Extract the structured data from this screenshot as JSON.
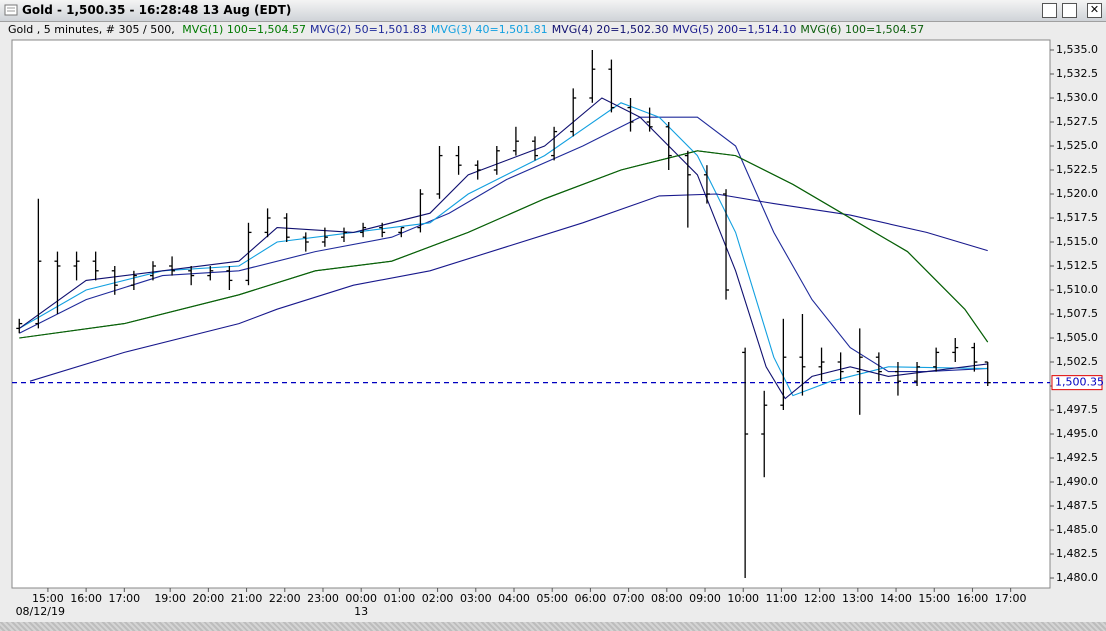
{
  "window": {
    "title": "Gold - 1,500.35 - 16:28:48  13 Aug (EDT)"
  },
  "chart_data": {
    "type": "ohlc",
    "info": "Gold , 5 minutes, # 305 / 500,",
    "color": "#000000",
    "x": [
      -0.75,
      -0.25,
      0.25,
      0.75,
      1.25,
      1.75,
      2.25,
      2.75,
      3.25,
      3.75,
      4.25,
      4.75,
      5.25,
      5.75,
      6.25,
      6.75,
      7.25,
      7.75,
      8.25,
      8.75,
      9.25,
      9.75,
      10.25,
      10.75,
      11.25,
      11.75,
      12.25,
      12.75,
      13.25,
      13.75,
      14.25,
      14.75,
      15.25,
      15.75,
      16.25,
      16.75,
      17.25,
      17.75,
      18.25,
      18.75,
      19.25,
      19.75,
      20.25,
      20.75,
      21.25,
      21.75,
      22.25,
      22.75,
      23.25,
      23.75,
      24.25,
      24.6
    ],
    "open": [
      1506,
      1506.5,
      1513,
      1512.5,
      1513,
      1512,
      1510.5,
      1511.5,
      1512.5,
      1512,
      1511.5,
      1512,
      1511,
      1516,
      1517.5,
      1515.5,
      1515,
      1515.5,
      1516,
      1516.5,
      1516,
      1516.5,
      1520,
      1524,
      1523,
      1522.5,
      1524.5,
      1525.5,
      1524,
      1526.5,
      1530,
      1533,
      1529,
      1527.5,
      1527,
      1524,
      1522,
      1520,
      1503.5,
      1495,
      1498,
      1503,
      1502,
      1502.5,
      1501.5,
      1503,
      1501.5,
      1500.5,
      1502,
      1503.5,
      1504,
      1502.5
    ],
    "high": [
      1507,
      1519.5,
      1514,
      1514,
      1514,
      1512.5,
      1512,
      1513,
      1513.5,
      1512.5,
      1512.5,
      1512.5,
      1517,
      1518.5,
      1518,
      1516,
      1516.5,
      1516.5,
      1517,
      1517,
      1516.5,
      1520.5,
      1525,
      1525,
      1523.5,
      1525,
      1527,
      1526,
      1527,
      1531,
      1535,
      1534,
      1530,
      1529,
      1527.5,
      1524.5,
      1523,
      1520.5,
      1504,
      1499.5,
      1507,
      1507.5,
      1504,
      1503.5,
      1506,
      1503.5,
      1502.5,
      1502.5,
      1504,
      1505,
      1504.5,
      1502.5
    ],
    "low": [
      1505.5,
      1506,
      1507.5,
      1511,
      1511,
      1509.5,
      1510,
      1511,
      1511.5,
      1510.5,
      1511,
      1510,
      1510.5,
      1515.5,
      1515,
      1514,
      1514.5,
      1515,
      1515.5,
      1515.5,
      1515.5,
      1516,
      1519.5,
      1522,
      1521.5,
      1522,
      1524,
      1523.5,
      1523.5,
      1526,
      1529.5,
      1528.5,
      1526.5,
      1526.5,
      1522.5,
      1516.5,
      1519,
      1509,
      1480,
      1490.5,
      1497.5,
      1499,
      1500.5,
      1500.5,
      1497,
      1500.5,
      1499,
      1500,
      1501.5,
      1502.5,
      1501.5,
      1500
    ],
    "close": [
      1506.5,
      1513,
      1512.5,
      1513,
      1512,
      1510.5,
      1511.5,
      1512.5,
      1512,
      1511.5,
      1512,
      1511,
      1516,
      1517.5,
      1515.5,
      1515,
      1515.5,
      1516,
      1516.5,
      1516,
      1516.5,
      1520,
      1524,
      1523,
      1522.5,
      1524.5,
      1525.5,
      1524,
      1526.5,
      1530,
      1533,
      1529,
      1527.5,
      1527,
      1524,
      1522,
      1520,
      1510,
      1495,
      1498,
      1503,
      1502,
      1502.5,
      1501.5,
      1503,
      1501.5,
      1500.5,
      1502,
      1503.5,
      1504,
      1502.5,
      1500.35
    ],
    "series": [
      {
        "name": "MVG(1) 100=1,504.57",
        "color": "#007a00",
        "x": [
          -0.75,
          2,
          5,
          7,
          9,
          11,
          13,
          15,
          17,
          18,
          19.5,
          21,
          22.5,
          24,
          24.6
        ],
        "values": [
          1505,
          1506.5,
          1509.5,
          1512,
          1513,
          1516,
          1519.5,
          1522.5,
          1524.5,
          1524,
          1521,
          1517.5,
          1514,
          1508,
          1504.57
        ]
      },
      {
        "name": "MVG(2) 50=1,501.83",
        "color": "#1f2a9a",
        "x": [
          -0.75,
          1,
          3,
          5,
          7,
          9,
          10.5,
          12,
          14,
          15.5,
          17,
          18,
          19,
          20,
          21,
          22,
          23,
          24.6
        ],
        "values": [
          1505.5,
          1509,
          1511.5,
          1512,
          1514,
          1515.5,
          1518,
          1521.5,
          1525,
          1528,
          1528,
          1525,
          1516,
          1509,
          1504,
          1501.5,
          1501.5,
          1501.83
        ]
      },
      {
        "name": "MVG(3) 40=1,501.81",
        "color": "#12a0e0",
        "x": [
          -0.75,
          1,
          3,
          5,
          6,
          8,
          10,
          11,
          13,
          15,
          16,
          17,
          18,
          19,
          19.5,
          20.5,
          22,
          24.6
        ],
        "values": [
          1506,
          1510,
          1512,
          1512.5,
          1515,
          1516,
          1517,
          1520,
          1524,
          1529.5,
          1528,
          1524,
          1516,
          1503,
          1499,
          1500.5,
          1502,
          1501.81
        ]
      },
      {
        "name": "MVG(4) 20=1,502.30",
        "color": "#101070",
        "x": [
          -0.75,
          1,
          3,
          5,
          6,
          8,
          10,
          11,
          13,
          14.5,
          15.5,
          17,
          18,
          18.8,
          19.3,
          20,
          21,
          22,
          24.6
        ],
        "values": [
          1506,
          1511,
          1512,
          1513,
          1516.5,
          1516,
          1518,
          1522,
          1525,
          1530,
          1528,
          1522,
          1512,
          1502,
          1498.7,
          1501,
          1502,
          1501,
          1502.3
        ]
      },
      {
        "name": "MVG(5) 200=1,514.10",
        "color": "#18188c",
        "x": [
          -0.47,
          2,
          5,
          6,
          8,
          10,
          12,
          14,
          16,
          17.5,
          19,
          21,
          23,
          24.6
        ],
        "values": [
          1500.5,
          1503.5,
          1506.5,
          1508,
          1510.5,
          1512,
          1514.5,
          1517,
          1519.8,
          1520,
          1519,
          1517.8,
          1516,
          1514.1
        ]
      },
      {
        "name": "MVG(6) 100=1,504.57",
        "color": "#0b5e0b",
        "x": [
          -0.75,
          2,
          5,
          7,
          9,
          11,
          13,
          15,
          17,
          18,
          19.5,
          21,
          22.5,
          24,
          24.6
        ],
        "values": [
          1505,
          1506.5,
          1509.5,
          1512,
          1513,
          1516,
          1519.5,
          1522.5,
          1524.5,
          1524,
          1521,
          1517.5,
          1514,
          1508,
          1504.57
        ]
      }
    ],
    "last_price": {
      "value": 1500.35,
      "label": "1,500.35",
      "color": "#0000c0"
    },
    "xlim": [
      -0.94,
      26.23
    ],
    "xticks": [
      {
        "value": 0,
        "label": "15:00"
      },
      {
        "value": 1,
        "label": "16:00"
      },
      {
        "value": 2,
        "label": "17:00"
      },
      {
        "value": 3.2,
        "label": "19:00"
      },
      {
        "value": 4.2,
        "label": "20:00"
      },
      {
        "value": 5.2,
        "label": "21:00"
      },
      {
        "value": 6.2,
        "label": "22:00"
      },
      {
        "value": 7.2,
        "label": "23:00"
      },
      {
        "value": 8.2,
        "label": "00:00"
      },
      {
        "value": 9.2,
        "label": "01:00"
      },
      {
        "value": 10.2,
        "label": "02:00"
      },
      {
        "value": 11.2,
        "label": "03:00"
      },
      {
        "value": 12.2,
        "label": "04:00"
      },
      {
        "value": 13.2,
        "label": "05:00"
      },
      {
        "value": 14.2,
        "label": "06:00"
      },
      {
        "value": 15.2,
        "label": "07:00"
      },
      {
        "value": 16.2,
        "label": "08:00"
      },
      {
        "value": 17.2,
        "label": "09:00"
      },
      {
        "value": 18.2,
        "label": "10:00"
      },
      {
        "value": 19.2,
        "label": "11:00"
      },
      {
        "value": 20.2,
        "label": "12:00"
      },
      {
        "value": 21.2,
        "label": "13:00"
      },
      {
        "value": 22.2,
        "label": "14:00"
      },
      {
        "value": 23.2,
        "label": "15:00"
      },
      {
        "value": 24.2,
        "label": "16:00"
      },
      {
        "value": 25.2,
        "label": "17:00"
      }
    ],
    "date_labels": [
      {
        "value": -0.2,
        "label": "08/12/19"
      },
      {
        "value": 8.2,
        "label": "13"
      }
    ],
    "ylim": [
      1478.96,
      1536.04
    ],
    "yticks": [
      {
        "value": 1480,
        "label": "1,480.0"
      },
      {
        "value": 1482.5,
        "label": "1,482.5"
      },
      {
        "value": 1485,
        "label": "1,485.0"
      },
      {
        "value": 1487.5,
        "label": "1,487.5"
      },
      {
        "value": 1490,
        "label": "1,490.0"
      },
      {
        "value": 1492.5,
        "label": "1,492.5"
      },
      {
        "value": 1495,
        "label": "1,495.0"
      },
      {
        "value": 1497.5,
        "label": "1,497.5"
      },
      {
        "value": 1500,
        "label": "1,500.0"
      },
      {
        "value": 1502.5,
        "label": "1,502.5"
      },
      {
        "value": 1505,
        "label": "1,505.0"
      },
      {
        "value": 1507.5,
        "label": "1,507.5"
      },
      {
        "value": 1510,
        "label": "1,510.0"
      },
      {
        "value": 1512.5,
        "label": "1,512.5"
      },
      {
        "value": 1515,
        "label": "1,515.0"
      },
      {
        "value": 1517.5,
        "label": "1,517.5"
      },
      {
        "value": 1520,
        "label": "1,520.0"
      },
      {
        "value": 1522.5,
        "label": "1,522.5"
      },
      {
        "value": 1525,
        "label": "1,525.0"
      },
      {
        "value": 1527.5,
        "label": "1,527.5"
      },
      {
        "value": 1530,
        "label": "1,530.0"
      },
      {
        "value": 1532.5,
        "label": "1,532.5"
      },
      {
        "value": 1535,
        "label": "1,535.0"
      }
    ]
  }
}
